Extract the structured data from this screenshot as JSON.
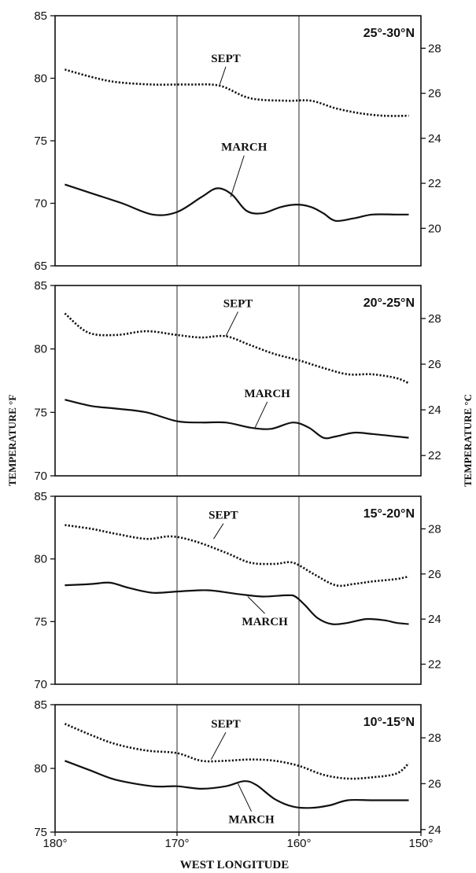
{
  "y_axis_left_label": "TEMPERATURE °F",
  "y_axis_right_label": "TEMPERATURE °C",
  "x_axis_label": "WEST LONGITUDE",
  "x_ticks": [
    {
      "value": 180,
      "label": "180°"
    },
    {
      "value": 170,
      "label": "170°"
    },
    {
      "value": 160,
      "label": "160°"
    },
    {
      "value": 150,
      "label": "150°"
    }
  ],
  "chart_data": [
    {
      "type": "line",
      "title": "25°-30°N",
      "xlabel": "WEST LONGITUDE",
      "ylabel": "TEMPERATURE °F",
      "ylabel_right": "TEMPERATURE °C",
      "xlim": [
        180,
        150
      ],
      "ylim": [
        65,
        85
      ],
      "yticks": [
        65,
        70,
        75,
        80,
        85
      ],
      "right_ticks": [
        20,
        22,
        24,
        26,
        28
      ],
      "series": [
        {
          "name": "SEPT",
          "style": "dotted",
          "x": [
            179.2,
            177,
            175,
            172,
            169,
            166.5,
            164,
            161,
            159,
            157,
            155,
            153,
            151
          ],
          "y": [
            80.7,
            80.1,
            79.7,
            79.5,
            79.5,
            79.4,
            78.4,
            78.2,
            78.2,
            77.6,
            77.2,
            77.0,
            77.0
          ]
        },
        {
          "name": "MARCH",
          "style": "solid",
          "x": [
            179.2,
            177,
            174.5,
            172,
            170,
            168,
            166.7,
            165.5,
            164.3,
            163,
            161.5,
            160.2,
            159,
            158,
            157,
            155.5,
            154,
            152,
            151
          ],
          "y": [
            71.5,
            70.8,
            70.0,
            69.1,
            69.3,
            70.5,
            71.2,
            70.7,
            69.4,
            69.2,
            69.7,
            69.9,
            69.7,
            69.2,
            68.6,
            68.8,
            69.1,
            69.1,
            69.1
          ]
        }
      ],
      "annotations": [
        {
          "text": "SEPT",
          "x": 166,
          "y": 81.3,
          "arrow_to": [
            166.5,
            79.5
          ]
        },
        {
          "text": "MARCH",
          "x": 164.5,
          "y": 74.2,
          "arrow_to": [
            165.6,
            70.5
          ]
        }
      ]
    },
    {
      "type": "line",
      "title": "20°-25°N",
      "xlabel": "WEST LONGITUDE",
      "ylabel": "TEMPERATURE °F",
      "ylabel_right": "TEMPERATURE °C",
      "xlim": [
        180,
        150
      ],
      "ylim": [
        70,
        85
      ],
      "yticks": [
        70,
        75,
        80,
        85
      ],
      "right_ticks": [
        22,
        24,
        26,
        28
      ],
      "series": [
        {
          "name": "SEPT",
          "style": "dotted",
          "x": [
            179.2,
            177.3,
            175,
            172.5,
            170,
            168,
            166,
            164,
            162,
            160,
            158,
            156,
            154,
            152,
            151
          ],
          "y": [
            82.8,
            81.3,
            81.1,
            81.4,
            81.1,
            80.9,
            81.0,
            80.3,
            79.6,
            79.1,
            78.5,
            78.0,
            78.0,
            77.7,
            77.3
          ]
        },
        {
          "name": "MARCH",
          "style": "solid",
          "x": [
            179.2,
            177,
            175,
            172.5,
            170,
            168,
            166,
            164,
            162.3,
            160.5,
            159.2,
            158,
            157,
            155.5,
            154,
            152,
            151
          ],
          "y": [
            76.0,
            75.5,
            75.3,
            75.0,
            74.3,
            74.2,
            74.2,
            73.8,
            73.7,
            74.2,
            73.8,
            73.0,
            73.1,
            73.4,
            73.3,
            73.1,
            73.0
          ]
        }
      ],
      "annotations": [
        {
          "text": "SEPT",
          "x": 165,
          "y": 83.3,
          "arrow_to": [
            166,
            81
          ]
        },
        {
          "text": "MARCH",
          "x": 162.6,
          "y": 76.2,
          "arrow_to": [
            163.6,
            73.8
          ]
        }
      ]
    },
    {
      "type": "line",
      "title": "15°-20°N",
      "xlabel": "WEST LONGITUDE",
      "ylabel": "TEMPERATURE °F",
      "ylabel_right": "TEMPERATURE °C",
      "xlim": [
        180,
        150
      ],
      "ylim": [
        70,
        85
      ],
      "yticks": [
        70,
        75,
        80,
        85
      ],
      "right_ticks": [
        22,
        24,
        26,
        28
      ],
      "series": [
        {
          "name": "SEPT",
          "style": "dotted",
          "x": [
            179.2,
            177,
            175,
            172.5,
            170.5,
            168.5,
            166,
            164,
            162,
            160.5,
            158.8,
            157,
            155.5,
            154,
            152,
            151
          ],
          "y": [
            82.7,
            82.4,
            82.0,
            81.6,
            81.8,
            81.4,
            80.5,
            79.7,
            79.6,
            79.7,
            78.8,
            77.9,
            78.0,
            78.2,
            78.4,
            78.6
          ]
        },
        {
          "name": "MARCH",
          "style": "solid",
          "x": [
            179.2,
            177,
            175.5,
            174,
            172,
            170,
            167.5,
            165,
            163,
            161,
            160.3,
            159.5,
            158.5,
            157.3,
            156,
            154.5,
            153,
            152,
            151
          ],
          "y": [
            77.9,
            78.0,
            78.1,
            77.7,
            77.3,
            77.4,
            77.5,
            77.2,
            77.0,
            77.1,
            77.0,
            76.3,
            75.3,
            74.8,
            74.9,
            75.2,
            75.1,
            74.9,
            74.8
          ]
        }
      ],
      "annotations": [
        {
          "text": "SEPT",
          "x": 166.2,
          "y": 83.2,
          "arrow_to": [
            167,
            81.6
          ]
        },
        {
          "text": "MARCH",
          "x": 162.8,
          "y": 74.7,
          "arrow_to": [
            164.2,
            77
          ]
        }
      ]
    },
    {
      "type": "line",
      "title": "10°-15°N",
      "xlabel": "WEST LONGITUDE",
      "ylabel": "TEMPERATURE °F",
      "ylabel_right": "TEMPERATURE °C",
      "xlim": [
        180,
        150
      ],
      "ylim": [
        75,
        85
      ],
      "yticks": [
        75,
        80,
        85
      ],
      "right_ticks": [
        24,
        26,
        28
      ],
      "series": [
        {
          "name": "SEPT",
          "style": "dotted",
          "x": [
            179.2,
            177,
            175,
            172.5,
            170,
            168,
            166,
            164,
            162,
            160,
            158,
            156,
            154,
            152,
            151
          ],
          "y": [
            83.5,
            82.6,
            81.9,
            81.4,
            81.2,
            80.6,
            80.6,
            80.7,
            80.6,
            80.2,
            79.5,
            79.2,
            79.3,
            79.6,
            80.4
          ]
        },
        {
          "name": "MARCH",
          "style": "solid",
          "x": [
            179.2,
            177,
            175,
            172,
            170,
            168,
            166,
            164.5,
            163.5,
            162,
            160.5,
            159,
            157.5,
            156,
            154,
            152,
            151
          ],
          "y": [
            80.6,
            79.8,
            79.1,
            78.6,
            78.6,
            78.4,
            78.6,
            79.0,
            78.7,
            77.6,
            77.0,
            76.9,
            77.1,
            77.5,
            77.5,
            77.5,
            77.5
          ]
        }
      ],
      "annotations": [
        {
          "text": "SEPT",
          "x": 166,
          "y": 83.2,
          "arrow_to": [
            167.2,
            80.7
          ]
        },
        {
          "text": "MARCH",
          "x": 163.9,
          "y": 75.7,
          "arrow_to": [
            165,
            78.8
          ]
        }
      ]
    }
  ]
}
